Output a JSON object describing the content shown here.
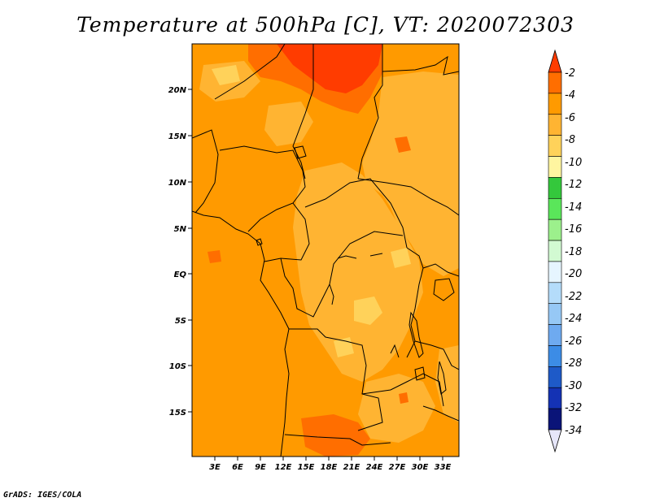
{
  "title": "Temperature at 500hPa [C], VT: 2020072303",
  "credit": "GrADS: IGES/COLA",
  "map": {
    "lon_ticks": [
      "3E",
      "6E",
      "9E",
      "12E",
      "15E",
      "18E",
      "21E",
      "24E",
      "27E",
      "30E",
      "33E"
    ],
    "lat_ticks": [
      "20N",
      "15N",
      "10N",
      "5N",
      "EQ",
      "5S",
      "10S",
      "15S"
    ],
    "lon_range": [
      0,
      35
    ],
    "lat_range": [
      -20,
      24.5
    ]
  },
  "colorbar": {
    "labels": [
      "-2",
      "-4",
      "-6",
      "-8",
      "-10",
      "-12",
      "-14",
      "-16",
      "-18",
      "-20",
      "-22",
      "-24",
      "-26",
      "-28",
      "-30",
      "-32",
      "-34"
    ],
    "colors": [
      "#ff3c00",
      "#ff6e00",
      "#ff9a00",
      "#ffb432",
      "#ffd25a",
      "#fff5a0",
      "#34c83c",
      "#5ae65a",
      "#9cf08c",
      "#d2fad2",
      "#e6f5ff",
      "#b4dcfa",
      "#96c8f5",
      "#6eaaf0",
      "#3c8ce6",
      "#1e5ac8",
      "#1432b4",
      "#0a1478",
      "#d2d2f0"
    ],
    "arrow_top": "#ff3c00",
    "arrow_bottom": "#e6e6fa"
  },
  "field_colors": {
    "base": "#ff9a00",
    "warm": "#ff6e00",
    "warmest": "#ff3c00",
    "cool": "#ffb432",
    "cooler": "#ffd25a"
  }
}
